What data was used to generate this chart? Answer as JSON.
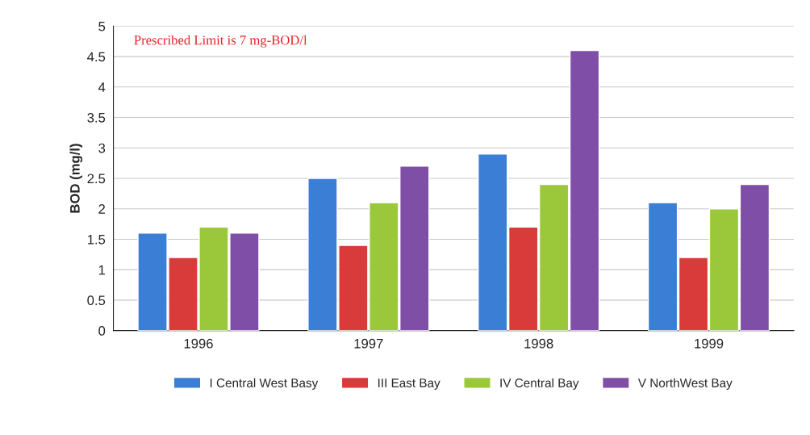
{
  "chart_data": {
    "type": "bar",
    "ylabel": "BOD (mg/l)",
    "categories": [
      "1996",
      "1997",
      "1998",
      "1999"
    ],
    "series": [
      {
        "name": "I Central West Basy",
        "color": "#3a7fd5",
        "values": [
          1.6,
          2.5,
          2.9,
          2.1
        ]
      },
      {
        "name": "III East Bay",
        "color": "#d93a3a",
        "values": [
          1.2,
          1.4,
          1.7,
          1.2
        ]
      },
      {
        "name": "IV Central Bay",
        "color": "#9bc83a",
        "values": [
          1.7,
          2.1,
          2.4,
          2.0
        ]
      },
      {
        "name": "V NorthWest Bay",
        "color": "#7f4fa8",
        "values": [
          1.6,
          2.7,
          4.6,
          2.4
        ]
      }
    ],
    "ylim": [
      0,
      5
    ],
    "yticks": [
      0,
      0.5,
      1,
      1.5,
      2,
      2.5,
      3,
      3.5,
      4,
      4.5,
      5
    ],
    "grid": "y",
    "legend": "bottom",
    "annotations": [
      "Prescribed Limit is 7 mg-BOD/l"
    ]
  }
}
